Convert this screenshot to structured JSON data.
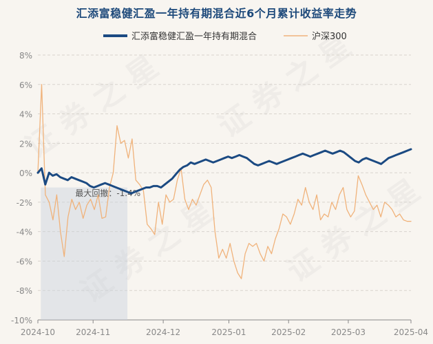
{
  "chart_data": {
    "type": "line",
    "title": "汇添富稳健汇盈一年持有期混合近6个月累计收益率走势",
    "y_ticks": [
      "8%",
      "6%",
      "4%",
      "2%",
      "0%",
      "-2%",
      "-4%",
      "-6%",
      "-8%",
      "-10%"
    ],
    "x_ticks": [
      "2024-10",
      "2024-11",
      "2024-12",
      "2025-01",
      "2025-02",
      "2025-03",
      "2025-04"
    ],
    "ylim": [
      -10,
      8
    ],
    "xlim": [
      0,
      125
    ],
    "x_tick_positions": [
      0,
      18.5,
      42,
      64,
      84,
      104,
      125
    ],
    "series": [
      {
        "name": "汇添富稳健汇盈一年持有期混合",
        "color": "#1b4a82",
        "values": [
          0.0,
          0.3,
          -0.8,
          0.0,
          -0.2,
          -0.1,
          -0.3,
          -0.4,
          -0.5,
          -0.3,
          -0.4,
          -0.5,
          -0.6,
          -0.7,
          -0.9,
          -1.0,
          -0.9,
          -0.8,
          -0.7,
          -0.8,
          -0.9,
          -1.0,
          -1.1,
          -1.2,
          -1.3,
          -1.4,
          -1.3,
          -1.2,
          -1.1,
          -1.0,
          -1.0,
          -0.9,
          -0.9,
          -1.0,
          -0.8,
          -0.6,
          -0.4,
          -0.1,
          0.2,
          0.4,
          0.5,
          0.7,
          0.6,
          0.7,
          0.8,
          0.9,
          0.8,
          0.7,
          0.8,
          0.9,
          1.0,
          1.1,
          1.0,
          1.1,
          1.2,
          1.1,
          1.0,
          0.8,
          0.6,
          0.5,
          0.6,
          0.7,
          0.8,
          0.7,
          0.6,
          0.7,
          0.8,
          0.9,
          1.0,
          1.1,
          1.2,
          1.3,
          1.2,
          1.1,
          1.2,
          1.3,
          1.4,
          1.5,
          1.4,
          1.3,
          1.4,
          1.5,
          1.4,
          1.2,
          1.0,
          0.8,
          0.7,
          0.9,
          1.0,
          0.9,
          0.8,
          0.7,
          0.6,
          0.8,
          1.0,
          1.1,
          1.2,
          1.3,
          1.4,
          1.5,
          1.6
        ]
      },
      {
        "name": "沪深300",
        "color": "#f0b27a",
        "values": [
          0.0,
          6.0,
          -1.5,
          -2.0,
          -3.2,
          -1.5,
          -4.0,
          -5.7,
          -3.0,
          -1.8,
          -2.5,
          -2.0,
          -3.1,
          -2.2,
          -1.8,
          -2.5,
          -1.5,
          -3.1,
          -3.0,
          -1.0,
          0.0,
          3.2,
          2.0,
          2.2,
          1.0,
          2.3,
          -0.5,
          -0.8,
          -1.2,
          -3.5,
          -3.8,
          -4.2,
          -2.0,
          -3.5,
          -1.5,
          -2.0,
          -1.8,
          -0.5,
          0.3,
          -1.8,
          -2.5,
          -1.8,
          -2.2,
          -1.5,
          -0.8,
          -0.5,
          -1.0,
          -4.0,
          -5.8,
          -5.2,
          -5.8,
          -4.8,
          -6.0,
          -6.8,
          -7.2,
          -5.5,
          -4.8,
          -5.0,
          -4.8,
          -5.5,
          -6.0,
          -5.0,
          -5.5,
          -4.5,
          -3.8,
          -2.8,
          -3.0,
          -3.5,
          -2.8,
          -1.8,
          -2.2,
          -1.0,
          -2.0,
          -2.5,
          -1.5,
          -3.2,
          -2.8,
          -3.0,
          -2.0,
          -2.5,
          -1.5,
          -1.0,
          -2.5,
          -3.0,
          -2.6,
          -0.2,
          -0.8,
          -1.5,
          -2.0,
          -2.5,
          -2.2,
          -3.0,
          -2.0,
          -2.2,
          -2.5,
          -3.0,
          -2.8,
          -3.2,
          -3.3,
          -3.3
        ]
      }
    ],
    "max_drawdown": {
      "label": "最大回撤：-1.4%",
      "x_start": 1,
      "x_end": 30
    }
  }
}
